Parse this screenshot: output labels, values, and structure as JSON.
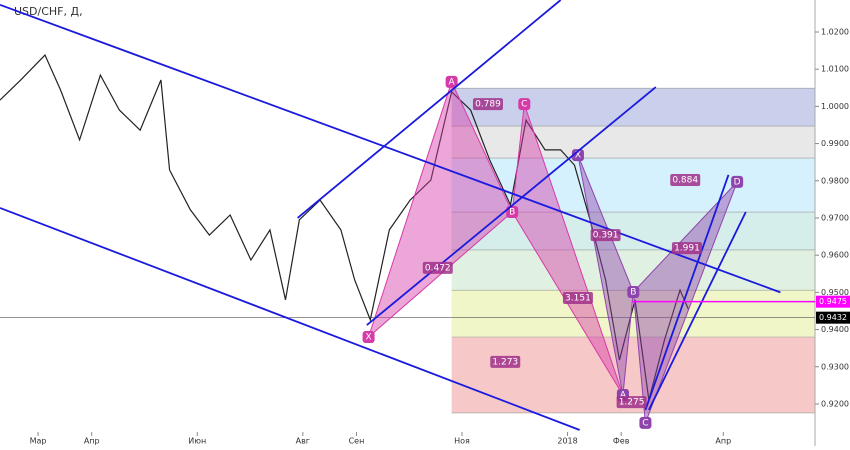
{
  "chart_data": {
    "type": "line",
    "title": "USD/CHF, Д,",
    "x": [
      -22,
      -10,
      4,
      13,
      24,
      36,
      47,
      59,
      71,
      76,
      88,
      99,
      111,
      123,
      134,
      143,
      151,
      163,
      175,
      183,
      192,
      203,
      215,
      227,
      239,
      250,
      261,
      273,
      282,
      293,
      302,
      310,
      319,
      328,
      336,
      345,
      353,
      362,
      371,
      376
    ],
    "series": [
      {
        "name": "USD/CHF",
        "color": "#222222",
        "values": [
          1.0017,
          1.0071,
          1.0138,
          1.0044,
          0.991,
          1.0084,
          0.999,
          0.9936,
          1.0071,
          0.9829,
          0.9722,
          0.9654,
          0.9708,
          0.9587,
          0.9668,
          0.948,
          0.9695,
          0.9748,
          0.9668,
          0.9533,
          0.9426,
          0.9668,
          0.9748,
          0.9802,
          1.0039,
          0.999,
          0.9856,
          0.9735,
          0.9963,
          0.9883,
          0.9883,
          0.9842,
          0.9695,
          0.9533,
          0.9318,
          0.948,
          0.9211,
          0.9372,
          0.9506,
          0.9453
        ]
      }
    ],
    "xlim": [
      -22,
      449
    ],
    "ylim": [
      0.9087,
      1.0286
    ],
    "xticks": [
      {
        "value": 0,
        "label": "Мар"
      },
      {
        "value": 31,
        "label": "Апр"
      },
      {
        "value": 92,
        "label": "Июн"
      },
      {
        "value": 153,
        "label": "Авг"
      },
      {
        "value": 184,
        "label": "Сен"
      },
      {
        "value": 245,
        "label": "Ноя"
      },
      {
        "value": 306,
        "label": "2018"
      },
      {
        "value": 337,
        "label": "Фев"
      },
      {
        "value": 396,
        "label": "Апр"
      }
    ],
    "yticks": [
      {
        "value": 0.92,
        "label": "0.9200"
      },
      {
        "value": 0.93,
        "label": "0.9300"
      },
      {
        "value": 0.94,
        "label": "0.9400"
      },
      {
        "value": 0.95,
        "label": "0.9500"
      },
      {
        "value": 0.96,
        "label": "0.9600"
      },
      {
        "value": 0.97,
        "label": "0.9700"
      },
      {
        "value": 0.98,
        "label": "0.9800"
      },
      {
        "value": 0.99,
        "label": "0.9900"
      },
      {
        "value": 1.0,
        "label": "1.0000"
      },
      {
        "value": 1.01,
        "label": "1.0100"
      },
      {
        "value": 1.02,
        "label": "1.0200"
      }
    ],
    "last_price": {
      "value": 0.9432,
      "label": "0.9432",
      "color": "#000000"
    },
    "hline": {
      "value": 0.9475,
      "label": "0.9475",
      "color": "#ff00ff"
    },
    "fib": {
      "x": [
        239,
        449
      ],
      "levels": [
        1.0049,
        0.9947,
        0.9861,
        0.9716,
        0.9614,
        0.9506,
        0.938,
        0.9176
      ],
      "colors": [
        "#9fa8da",
        "#d6d6d6",
        "#b3e5fc",
        "#b2dfdb",
        "#c8e6c9",
        "#e6ee9c",
        "#ef9a9a"
      ]
    },
    "trendlines": {
      "color": "#1a1adf",
      "lines": [
        {
          "x": [
            -22,
            429
          ],
          "y": [
            1.0273,
            0.95
          ]
        },
        {
          "x": [
            -22,
            313
          ],
          "y": [
            0.9727,
            0.913
          ]
        },
        {
          "x": [
            150,
            302
          ],
          "y": [
            0.97,
            1.0286
          ]
        },
        {
          "x": [
            190,
            357
          ],
          "y": [
            0.9412,
            1.0052
          ]
        },
        {
          "x": [
            351,
            399
          ],
          "y": [
            0.9184,
            0.9816
          ]
        },
        {
          "x": [
            353,
            409
          ],
          "y": [
            0.9184,
            0.9716
          ]
        }
      ]
    },
    "patterns": [
      {
        "color": "#d63aa8",
        "points": [
          {
            "label": "X",
            "x": 191,
            "y": 0.938
          },
          {
            "label": "A",
            "x": 239,
            "y": 1.0066
          },
          {
            "label": "B",
            "x": 274,
            "y": 0.9716
          },
          {
            "label": "C",
            "x": 281,
            "y": 1.0006
          },
          {
            "label": "D",
            "x": 338,
            "y": 0.9224
          }
        ]
      },
      {
        "color": "#8e44ad",
        "points": [
          {
            "label": "X",
            "x": 312,
            "y": 0.9869
          },
          {
            "label": "A",
            "x": 338,
            "y": 0.9224
          },
          {
            "label": "B",
            "x": 344,
            "y": 0.9501
          },
          {
            "label": "C",
            "x": 351,
            "y": 0.9149
          },
          {
            "label": "D",
            "x": 404,
            "y": 0.9797
          }
        ]
      }
    ],
    "ratios": [
      {
        "label": "0.789",
        "x": 260,
        "y": 1.0006
      },
      {
        "label": "0.472",
        "x": 231,
        "y": 0.9566
      },
      {
        "label": "0.884",
        "x": 374,
        "y": 0.9802
      },
      {
        "label": "0.391",
        "x": 328,
        "y": 0.9654
      },
      {
        "label": "1.991",
        "x": 375,
        "y": 0.9619
      },
      {
        "label": "3.151",
        "x": 312,
        "y": 0.9485
      },
      {
        "label": "1.273",
        "x": 270,
        "y": 0.9313
      },
      {
        "label": "1.275",
        "x": 343,
        "y": 0.9205
      }
    ]
  }
}
